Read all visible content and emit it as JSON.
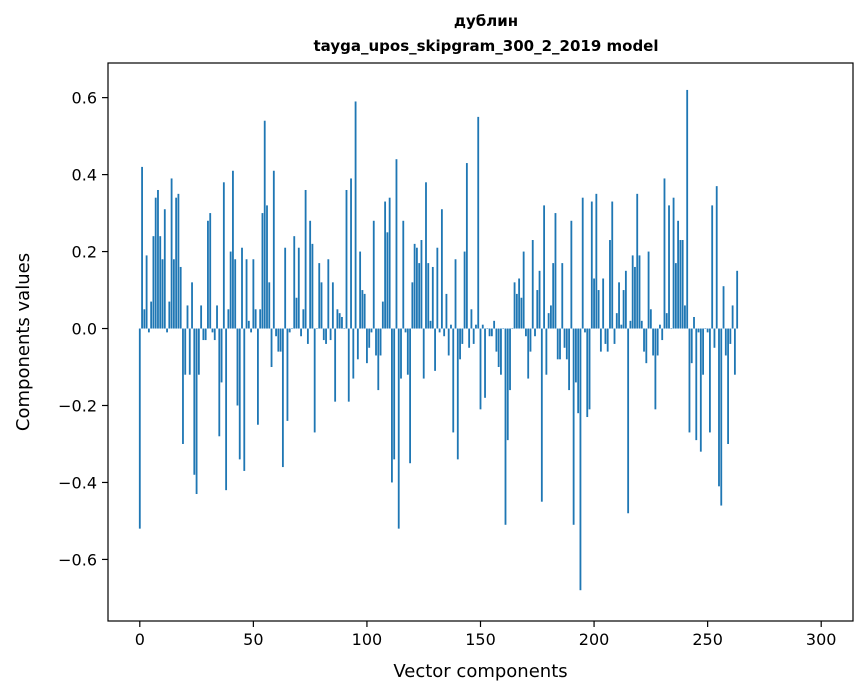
{
  "chart_data": {
    "type": "bar",
    "title": [
      "дублин",
      "tayga_upos_skipgram_300_2_2019 model"
    ],
    "xlabel": "Vector components",
    "ylabel": "Components values",
    "xlim": [
      -14,
      314
    ],
    "ylim": [
      -0.76,
      0.69
    ],
    "xticks": [
      0,
      50,
      100,
      150,
      200,
      250,
      300
    ],
    "xtick_labels": [
      "0",
      "50",
      "100",
      "150",
      "200",
      "250",
      "300"
    ],
    "yticks": [
      -0.6,
      -0.4,
      -0.2,
      0.0,
      0.2,
      0.4,
      0.6
    ],
    "ytick_labels": [
      "−0.6",
      "−0.4",
      "−0.2",
      "0.0",
      "0.2",
      "0.4",
      "0.6"
    ],
    "bar_color": "#1f77b4",
    "grid": false,
    "values": [
      -0.52,
      0.42,
      0.05,
      0.19,
      -0.01,
      0.07,
      0.24,
      0.34,
      0.36,
      0.24,
      0.18,
      0.31,
      -0.01,
      0.07,
      0.39,
      0.18,
      0.34,
      0.35,
      0.16,
      -0.3,
      -0.12,
      0.06,
      -0.12,
      0.12,
      -0.38,
      -0.43,
      -0.12,
      0.06,
      -0.03,
      -0.03,
      0.28,
      0.3,
      -0.01,
      -0.03,
      0.06,
      -0.28,
      -0.14,
      0.38,
      -0.42,
      0.05,
      0.2,
      0.41,
      0.18,
      -0.2,
      -0.34,
      0.21,
      -0.37,
      0.18,
      0.02,
      -0.01,
      0.18,
      0.05,
      -0.25,
      0.05,
      0.3,
      0.54,
      0.32,
      0.12,
      -0.1,
      0.41,
      -0.02,
      -0.06,
      -0.06,
      -0.36,
      0.21,
      -0.24,
      -0.01,
      0.0,
      0.24,
      0.08,
      0.21,
      -0.02,
      0.05,
      0.36,
      -0.04,
      0.28,
      0.22,
      -0.27,
      0.0,
      0.17,
      0.12,
      -0.03,
      -0.04,
      0.18,
      -0.03,
      0.12,
      -0.19,
      0.05,
      0.04,
      0.03,
      0.0,
      0.36,
      -0.19,
      0.39,
      -0.13,
      0.59,
      -0.08,
      0.2,
      0.1,
      0.09,
      -0.09,
      -0.05,
      -0.01,
      0.28,
      -0.07,
      -0.16,
      -0.07,
      0.07,
      0.33,
      0.25,
      0.34,
      -0.4,
      -0.34,
      0.44,
      -0.52,
      -0.13,
      0.28,
      -0.01,
      -0.12,
      -0.35,
      0.12,
      0.22,
      0.21,
      0.17,
      0.23,
      -0.13,
      0.38,
      0.17,
      0.02,
      0.16,
      -0.11,
      0.21,
      -0.01,
      0.31,
      -0.02,
      0.09,
      -0.07,
      0.01,
      -0.27,
      0.18,
      -0.34,
      -0.08,
      -0.04,
      0.2,
      0.43,
      -0.05,
      0.05,
      -0.04,
      0.01,
      0.55,
      -0.21,
      0.01,
      -0.18,
      0.0,
      -0.02,
      -0.02,
      0.02,
      -0.06,
      -0.1,
      -0.12,
      0.0,
      -0.51,
      -0.29,
      -0.16,
      0.0,
      0.12,
      0.09,
      0.13,
      0.08,
      0.2,
      -0.02,
      -0.13,
      -0.06,
      0.23,
      -0.02,
      0.1,
      0.15,
      -0.45,
      0.32,
      -0.12,
      0.04,
      0.06,
      0.17,
      0.3,
      -0.08,
      -0.08,
      0.17,
      -0.05,
      -0.08,
      -0.16,
      0.28,
      -0.51,
      -0.14,
      -0.22,
      -0.68,
      0.34,
      -0.01,
      -0.23,
      -0.21,
      0.33,
      0.13,
      0.35,
      0.1,
      -0.06,
      0.13,
      -0.04,
      -0.06,
      0.23,
      0.33,
      -0.04,
      0.04,
      0.12,
      0.01,
      0.1,
      0.15,
      -0.48,
      0.02,
      0.19,
      0.16,
      0.35,
      0.19,
      0.02,
      -0.06,
      -0.09,
      0.2,
      0.05,
      -0.07,
      -0.21,
      -0.07,
      0.01,
      -0.03,
      0.39,
      0.04,
      0.32,
      0.0,
      0.34,
      0.17,
      0.28,
      0.23,
      0.23,
      0.06,
      0.62,
      -0.27,
      -0.09,
      0.03,
      -0.29,
      -0.01,
      -0.32,
      -0.12,
      0.0,
      -0.01,
      -0.27,
      0.32,
      -0.05,
      0.37,
      -0.41,
      -0.46,
      0.11,
      -0.07,
      -0.3,
      -0.04,
      0.06,
      -0.12,
      0.15
    ]
  }
}
